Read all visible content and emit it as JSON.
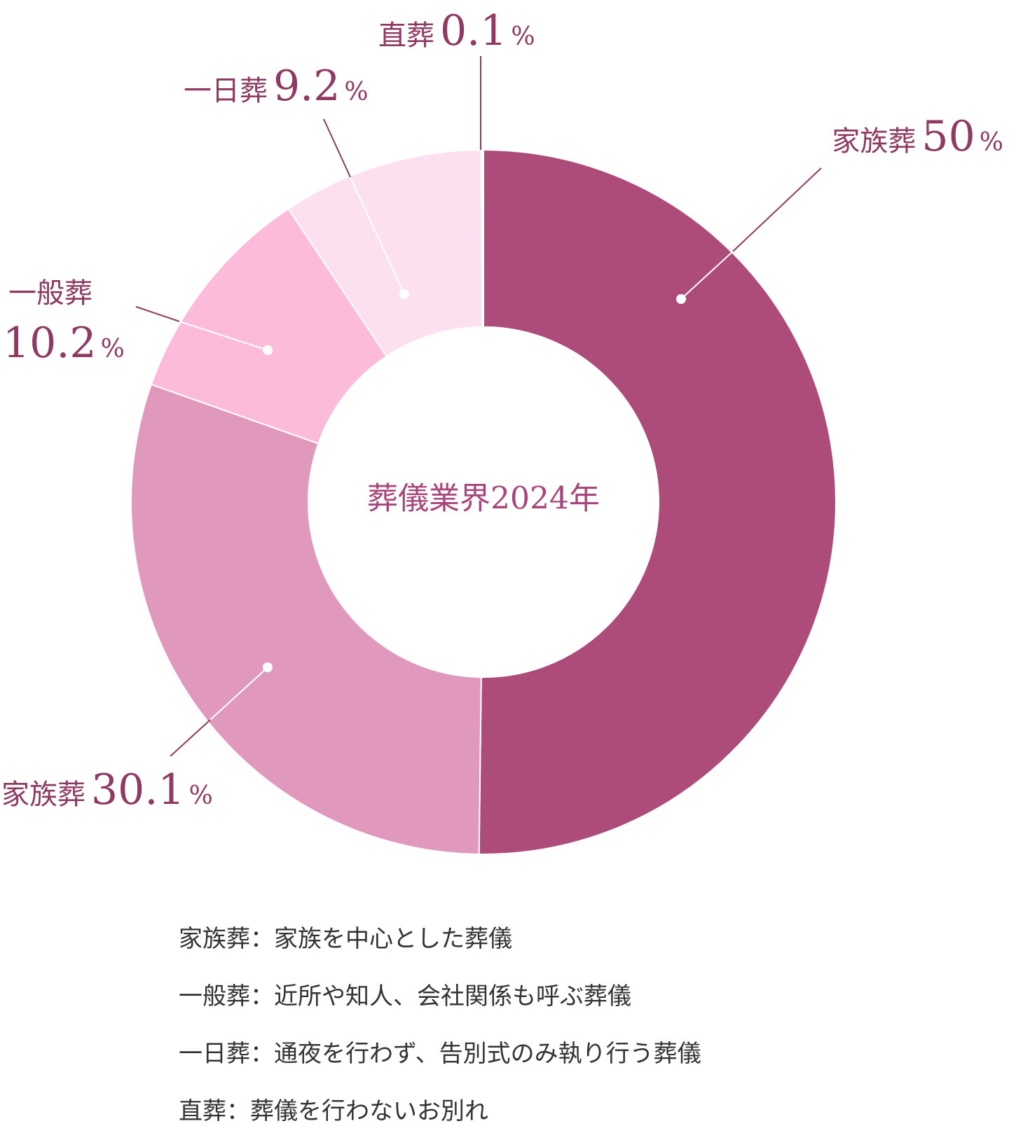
{
  "chart_data": {
    "type": "pie",
    "center_text": "葬儀業界2024年",
    "slices": [
      {
        "name": "家族葬",
        "value": 50,
        "pct_text": "50",
        "color": "#ad4b7b",
        "label_color": "#8e3a62"
      },
      {
        "name": "家族葬",
        "value": 30.1,
        "pct_text": "30.1",
        "color": "#e198bd",
        "label_color": "#8e3a62"
      },
      {
        "name": "一般葬",
        "value": 10.2,
        "pct_text": "10.2",
        "color": "#fdbbdc",
        "label_color": "#8e3a62"
      },
      {
        "name": "一日葬",
        "value": 9.2,
        "pct_text": "9.2",
        "color": "#fde0ef",
        "label_color": "#8e3a62"
      },
      {
        "name": "直葬",
        "value": 0.1,
        "pct_text": "0.1",
        "color": "#ffffff",
        "label_color": "#8e3a62"
      }
    ],
    "percent_sign": "%"
  },
  "notes": [
    "家族葬：家族を中心とした葬儀",
    "一般葬：近所や知人、会社関係も呼ぶ葬儀",
    "一日葬：通夜を行わず、告別式のみ執り行う葬儀",
    "直葬：葬儀を行わないお別れ"
  ],
  "colors": {
    "accent": "#8e3a62",
    "center_text": "#a8457a",
    "leader_line": "#8e3a62",
    "note_text": "#333333"
  }
}
